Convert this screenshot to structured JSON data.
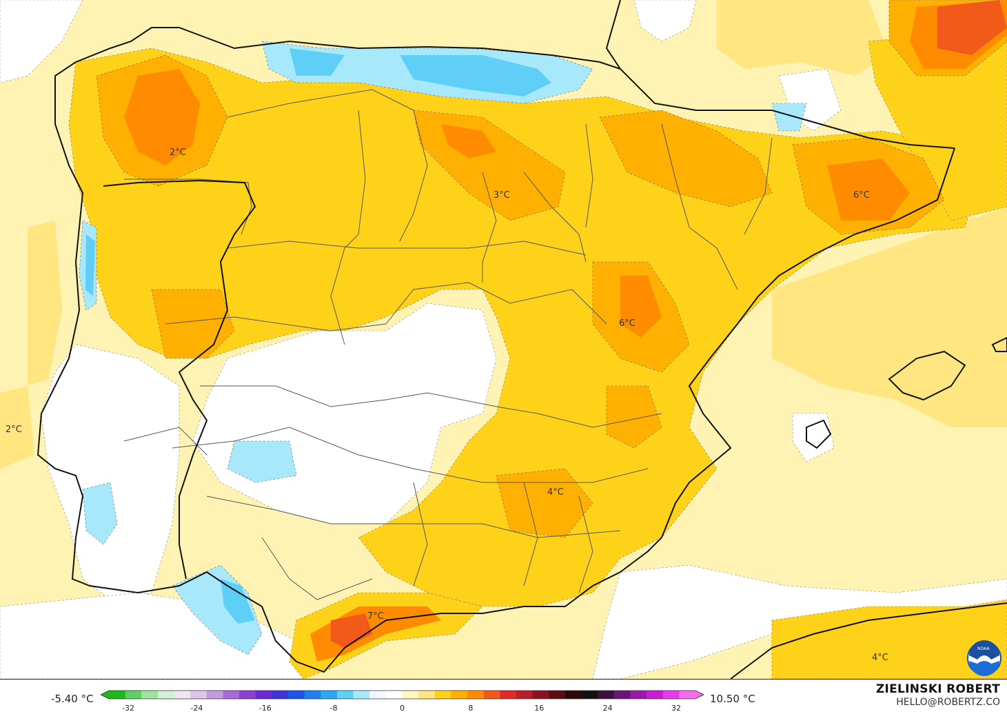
{
  "map": {
    "labels": [
      {
        "id": "l1",
        "text": "2°C"
      },
      {
        "id": "l2",
        "text": "3°C"
      },
      {
        "id": "l3",
        "text": "6°C"
      },
      {
        "id": "l4",
        "text": "6°C"
      },
      {
        "id": "l5",
        "text": "2°C"
      },
      {
        "id": "l6",
        "text": "4°C"
      },
      {
        "id": "l7",
        "text": "7°C"
      },
      {
        "id": "l8",
        "text": "4°C"
      }
    ]
  },
  "scale": {
    "min_label": "-5.40 °C",
    "max_label": "10.50 °C",
    "ticks": [
      "-32",
      "-24",
      "-16",
      "-8",
      "0",
      "8",
      "16",
      "24",
      "32"
    ],
    "colors": [
      "#1db81d",
      "#5fcf5f",
      "#9fe39f",
      "#d3f0d3",
      "#efe6f2",
      "#dcc4ea",
      "#c59be0",
      "#a86ad6",
      "#8c3fd0",
      "#6a2ad6",
      "#3f34db",
      "#1e54e6",
      "#1f7ff0",
      "#2aa7f5",
      "#60cff7",
      "#a8e8fb",
      "#f2f7ff",
      "#ffffff",
      "#fff7bf",
      "#ffe680",
      "#ffd21a",
      "#ffb000",
      "#ff8c00",
      "#f25a1a",
      "#e02a2a",
      "#b81d2a",
      "#8a1321",
      "#5b0d16",
      "#2a0a0a",
      "#111111",
      "#3d0f3f",
      "#6a1479",
      "#9a1aa8",
      "#c81ed1",
      "#e63ce8",
      "#f56bf0"
    ]
  },
  "brand": {
    "name": "ZIELINSKI ROBERT",
    "contact": "HELLO@ROBERTZ.CO"
  },
  "logo": {
    "text": "NOAA"
  }
}
